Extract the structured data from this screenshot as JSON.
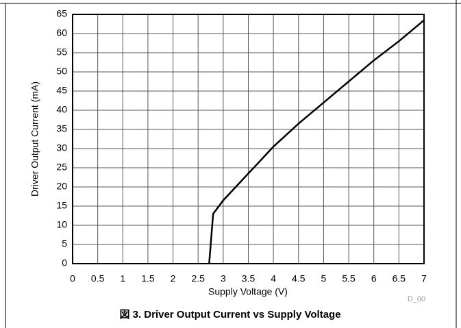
{
  "chart_data": {
    "type": "line",
    "title": "図 3. Driver Output Current vs Supply Voltage",
    "x_label": "Supply Voltage (V)",
    "y_label": "Driver Output Current (mA)",
    "annotation": "D_00",
    "x": [
      2.72,
      2.8,
      3,
      3.5,
      4,
      4.5,
      5,
      5.5,
      6,
      6.5,
      7
    ],
    "series": [
      {
        "name": "Driver Output Current",
        "color": "#000000",
        "values": [
          0,
          13,
          16.5,
          23.5,
          30.5,
          36.5,
          42,
          47.5,
          53,
          58,
          63.5
        ]
      }
    ],
    "xlim": [
      0,
      7
    ],
    "xticks": [
      0,
      0.5,
      1,
      1.5,
      2,
      2.5,
      3,
      3.5,
      4,
      4.5,
      5,
      5.5,
      6,
      6.5,
      7
    ],
    "ylim": [
      0,
      65
    ],
    "yticks": [
      0,
      5,
      10,
      15,
      20,
      25,
      30,
      35,
      40,
      45,
      50,
      55,
      60,
      65
    ],
    "grid": true
  }
}
